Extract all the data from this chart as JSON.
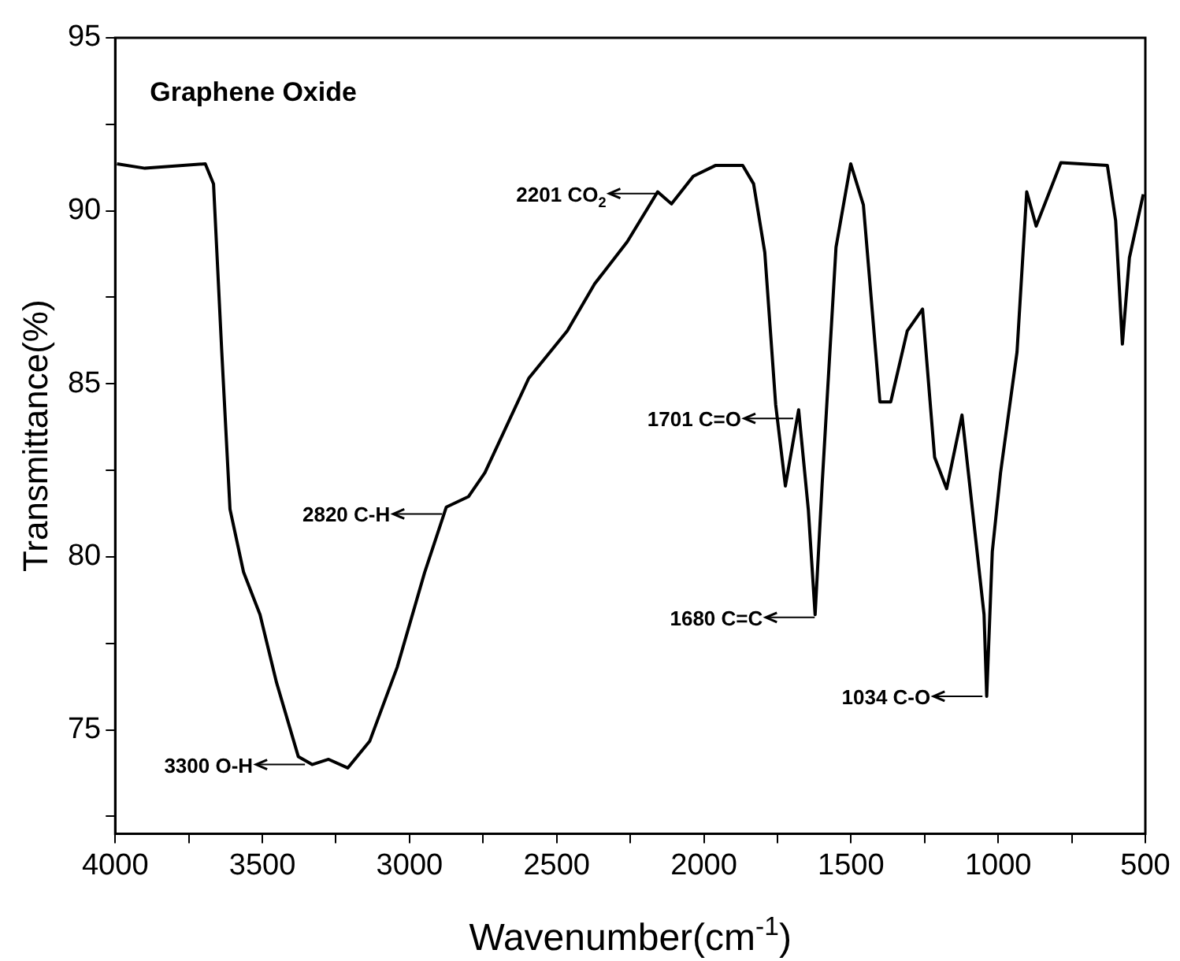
{
  "chart_data": {
    "type": "line",
    "title": "Graphene Oxide",
    "xlabel": "Wavenumber(cm$^{-1}$)",
    "ylabel": "Transmittance(%)",
    "xlim": [
      4000,
      500
    ],
    "ylim": [
      72,
      95
    ],
    "xticks": [
      4000,
      {
        "value": 3750,
        "label": null
      },
      3500,
      {
        "value": 3250,
        "label": null
      },
      3000,
      {
        "value": 2750,
        "label": null
      },
      2500,
      {
        "value": 2250,
        "label": null
      },
      2000,
      {
        "value": 1750,
        "label": null
      },
      1500,
      {
        "value": 1250,
        "label": null
      },
      1000,
      {
        "value": 750,
        "label": null
      },
      500
    ],
    "yticks": [
      {
        "value": 72.5,
        "label": null
      },
      75,
      {
        "value": 77.5,
        "label": null
      },
      80,
      {
        "value": 82.5,
        "label": null
      },
      85,
      {
        "value": 87.5,
        "label": null
      },
      90,
      {
        "value": 92.5,
        "label": null
      },
      95
    ],
    "marker": "none",
    "line_style": "solid",
    "series": [
      {
        "color": "#000000",
        "x": [
          3994,
          3899,
          3694,
          3666,
          3638,
          3610,
          3564,
          3508,
          3452,
          3378,
          3331,
          3275,
          3210,
          3135,
          3042,
          2949,
          2875,
          2800,
          2744,
          2595,
          2464,
          2371,
          2260,
          2157,
          2110,
          2036,
          1961,
          1868,
          1831,
          1793,
          1756,
          1723,
          1678,
          1645,
          1622,
          1598,
          1551,
          1501,
          1458,
          1402,
          1365,
          1309,
          1257,
          1216,
          1175,
          1123,
          1048,
          1039,
          1020,
          992,
          936,
          903,
          871,
          787,
          629,
          601,
          578,
          554,
          507
        ],
        "values": [
          91.36,
          91.23,
          91.36,
          90.78,
          85.93,
          81.38,
          79.56,
          78.33,
          76.37,
          74.23,
          74.0,
          74.15,
          73.9,
          74.68,
          76.81,
          79.54,
          81.44,
          81.74,
          82.43,
          85.16,
          86.53,
          87.89,
          89.11,
          90.55,
          90.2,
          91.0,
          91.31,
          91.31,
          90.78,
          88.8,
          84.4,
          82.05,
          84.25,
          81.36,
          78.33,
          82.12,
          88.95,
          91.36,
          90.17,
          84.48,
          84.48,
          86.53,
          87.16,
          82.88,
          81.97,
          84.1,
          78.33,
          75.97,
          80.15,
          82.43,
          85.92,
          90.55,
          89.56,
          91.39,
          91.31,
          89.72,
          86.15,
          88.65,
          90.48
        ]
      }
    ],
    "annotations": [
      {
        "text": "2201 CO$_{2}$",
        "x": 2150,
        "y": 90.5
      },
      {
        "text": "1701 C=O",
        "x": 1691,
        "y": 84.0
      },
      {
        "text": "1680 C=C",
        "x": 1618,
        "y": 78.25
      },
      {
        "text": "1034 C-O",
        "x": 1048,
        "y": 75.97
      },
      {
        "text": "2820 C-H",
        "x": 2884,
        "y": 81.24
      },
      {
        "text": "3300 O-H",
        "x": 3350,
        "y": 74.0
      }
    ]
  }
}
